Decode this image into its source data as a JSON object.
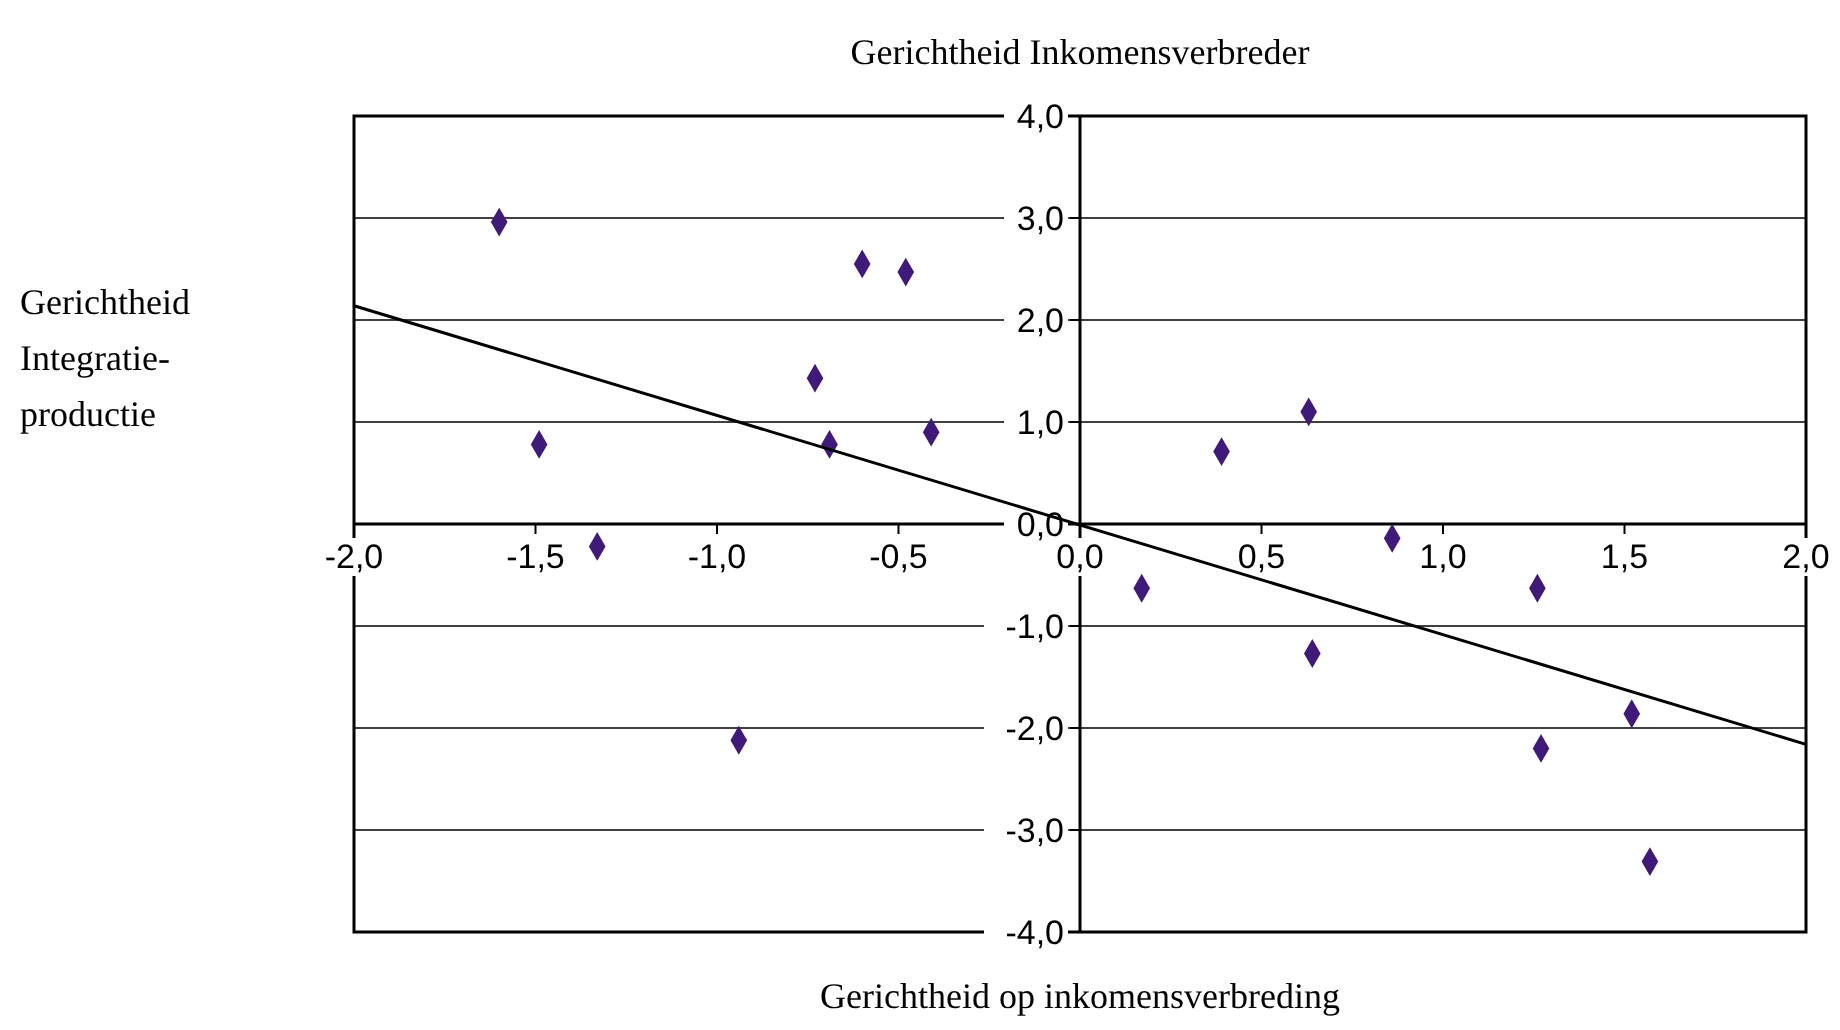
{
  "chart_data": {
    "type": "scatter",
    "title": "Gerichtheid Inkomensverbreder",
    "xlabel": "Gerichtheid op inkomensverbreding",
    "ylabel": "Gerichtheid Integratie-productie",
    "xlim": [
      -2,
      2
    ],
    "xticks": [
      {
        "value": -2,
        "label": "-2,0"
      },
      {
        "value": -1.5,
        "label": "-1,5"
      },
      {
        "value": -1,
        "label": "-1,0"
      },
      {
        "value": -0.5,
        "label": "-0,5"
      },
      {
        "value": 0,
        "label": "0,0"
      },
      {
        "value": 0.5,
        "label": "0,5"
      },
      {
        "value": 1,
        "label": "1,0"
      },
      {
        "value": 1.5,
        "label": "1,5"
      },
      {
        "value": 2,
        "label": "2,0"
      }
    ],
    "ylim": [
      -4,
      4
    ],
    "yticks": [
      {
        "value": -4,
        "label": "-4,0"
      },
      {
        "value": -3,
        "label": "-3,0"
      },
      {
        "value": -2,
        "label": "-2,0"
      },
      {
        "value": -1,
        "label": "-1,0"
      },
      {
        "value": 0,
        "label": "0,0"
      },
      {
        "value": 1,
        "label": "1,0"
      },
      {
        "value": 2,
        "label": "2,0"
      },
      {
        "value": 3,
        "label": "3,0"
      },
      {
        "value": 4,
        "label": "4,0"
      }
    ],
    "grid": "y",
    "marker": "diamond",
    "series": [
      {
        "color": "#3f1a7a",
        "x": [
          -1.6,
          -1.49,
          -1.33,
          -0.94,
          -0.73,
          -0.69,
          -0.6,
          -0.48,
          -0.41,
          0.17,
          0.39,
          0.63,
          0.64,
          0.86,
          1.26,
          1.27,
          1.52,
          1.57
        ],
        "values": [
          2.96,
          0.78,
          -0.22,
          -2.12,
          1.43,
          0.78,
          2.55,
          2.47,
          0.9,
          -0.63,
          0.71,
          1.1,
          -1.27,
          -0.14,
          -0.63,
          -2.2,
          -1.86,
          -3.31
        ]
      },
      {
        "type": "line",
        "color": "#000000",
        "marker": "none",
        "x": [
          -2,
          2
        ],
        "values": [
          2.14,
          -2.16
        ]
      }
    ]
  }
}
